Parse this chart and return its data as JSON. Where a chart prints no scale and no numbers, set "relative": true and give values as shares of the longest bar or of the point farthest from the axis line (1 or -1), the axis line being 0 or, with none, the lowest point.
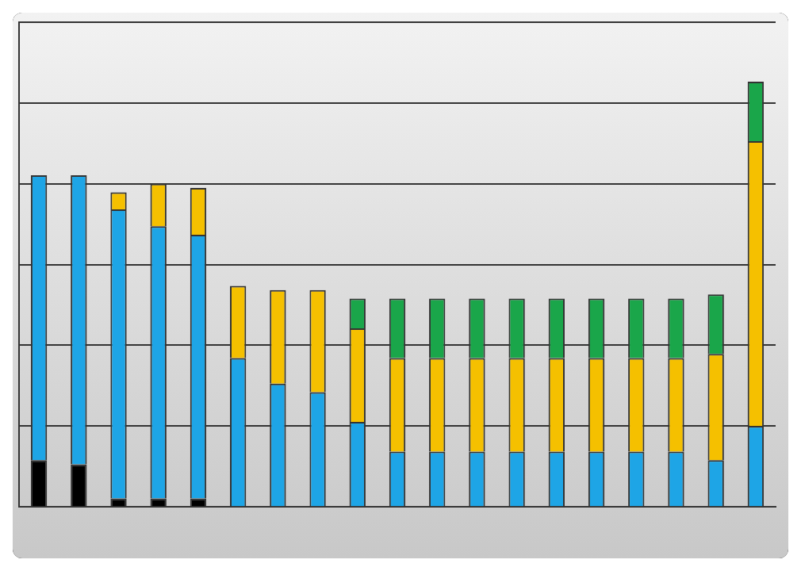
{
  "chart_data": {
    "type": "bar",
    "stacked": true,
    "relative": true,
    "grid": "y",
    "categories": [
      null,
      null,
      null,
      null,
      null,
      null,
      null,
      null,
      null,
      null,
      null,
      null,
      null,
      null,
      null,
      null,
      null,
      null,
      null
    ],
    "series": [
      {
        "color": "#000000",
        "values": [
          0.11,
          0.1,
          0.02,
          0.02,
          0.02,
          0,
          0,
          0,
          0,
          0,
          0,
          0,
          0,
          0,
          0,
          0,
          0,
          0,
          0
        ]
      },
      {
        "color": "#1ea5e6",
        "values": [
          0.67,
          0.68,
          0.68,
          0.64,
          0.62,
          0.35,
          0.29,
          0.27,
          0.2,
          0.13,
          0.13,
          0.13,
          0.13,
          0.13,
          0.13,
          0.13,
          0.13,
          0.11,
          0.19
        ]
      },
      {
        "color": "#f5c000",
        "values": [
          0,
          0,
          0.04,
          0.1,
          0.11,
          0.17,
          0.22,
          0.24,
          0.22,
          0.22,
          0.22,
          0.22,
          0.22,
          0.22,
          0.22,
          0.22,
          0.22,
          0.25,
          0.67
        ]
      },
      {
        "color": "#1aa64a",
        "values": [
          0,
          0,
          0,
          0,
          0,
          0,
          0,
          0,
          0.07,
          0.14,
          0.14,
          0.14,
          0.14,
          0.14,
          0.14,
          0.14,
          0.14,
          0.14,
          0.14
        ]
      }
    ]
  }
}
